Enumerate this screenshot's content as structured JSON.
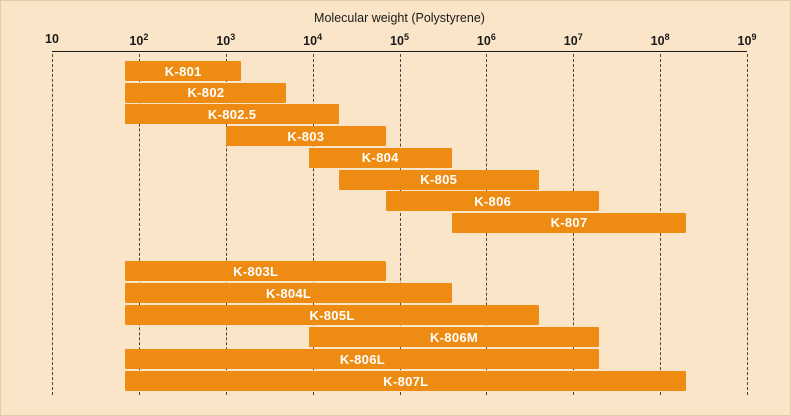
{
  "chart_data": {
    "type": "bar",
    "orientation": "horizontal",
    "x_scale": "log10",
    "title": "Molecular weight (Polystyrene)",
    "x_axis": {
      "min": 10,
      "max": 1000000000,
      "tick_exponents": [
        1,
        2,
        3,
        4,
        5,
        6,
        7,
        8,
        9
      ],
      "tick_labels": [
        "10",
        "10²",
        "10³",
        "10⁴",
        "10⁵",
        "10⁶",
        "10⁷",
        "10⁸",
        "10⁹"
      ],
      "grid": "dashed-vertical"
    },
    "legend": "none",
    "bar_groups": [
      {
        "name": "standard-columns",
        "bars": [
          {
            "label": "K-801",
            "mw_min": 70,
            "mw_max": 1500
          },
          {
            "label": "K-802",
            "mw_min": 70,
            "mw_max": 5000
          },
          {
            "label": "K-802.5",
            "mw_min": 70,
            "mw_max": 20000
          },
          {
            "label": "K-803",
            "mw_min": 1000,
            "mw_max": 70000
          },
          {
            "label": "K-804",
            "mw_min": 9000,
            "mw_max": 400000
          },
          {
            "label": "K-805",
            "mw_min": 20000,
            "mw_max": 4000000
          },
          {
            "label": "K-806",
            "mw_min": 70000,
            "mw_max": 20000000
          },
          {
            "label": "K-807",
            "mw_min": 400000,
            "mw_max": 200000000
          }
        ]
      },
      {
        "name": "linear-mixed-columns",
        "bars": [
          {
            "label": "K-803L",
            "mw_min": 70,
            "mw_max": 70000
          },
          {
            "label": "K-804L",
            "mw_min": 70,
            "mw_max": 400000
          },
          {
            "label": "K-805L",
            "mw_min": 70,
            "mw_max": 4000000
          },
          {
            "label": "K-806M",
            "mw_min": 9000,
            "mw_max": 20000000
          },
          {
            "label": "K-806L",
            "mw_min": 70,
            "mw_max": 20000000
          },
          {
            "label": "K-807L",
            "mw_min": 70,
            "mw_max": 200000000
          }
        ]
      }
    ]
  },
  "colors": {
    "background": "#FBE5C8",
    "bar": "#EE8B12",
    "bar_label": "#FFFFFF",
    "axis": "#1A1A1A",
    "gridline": "#444444"
  }
}
